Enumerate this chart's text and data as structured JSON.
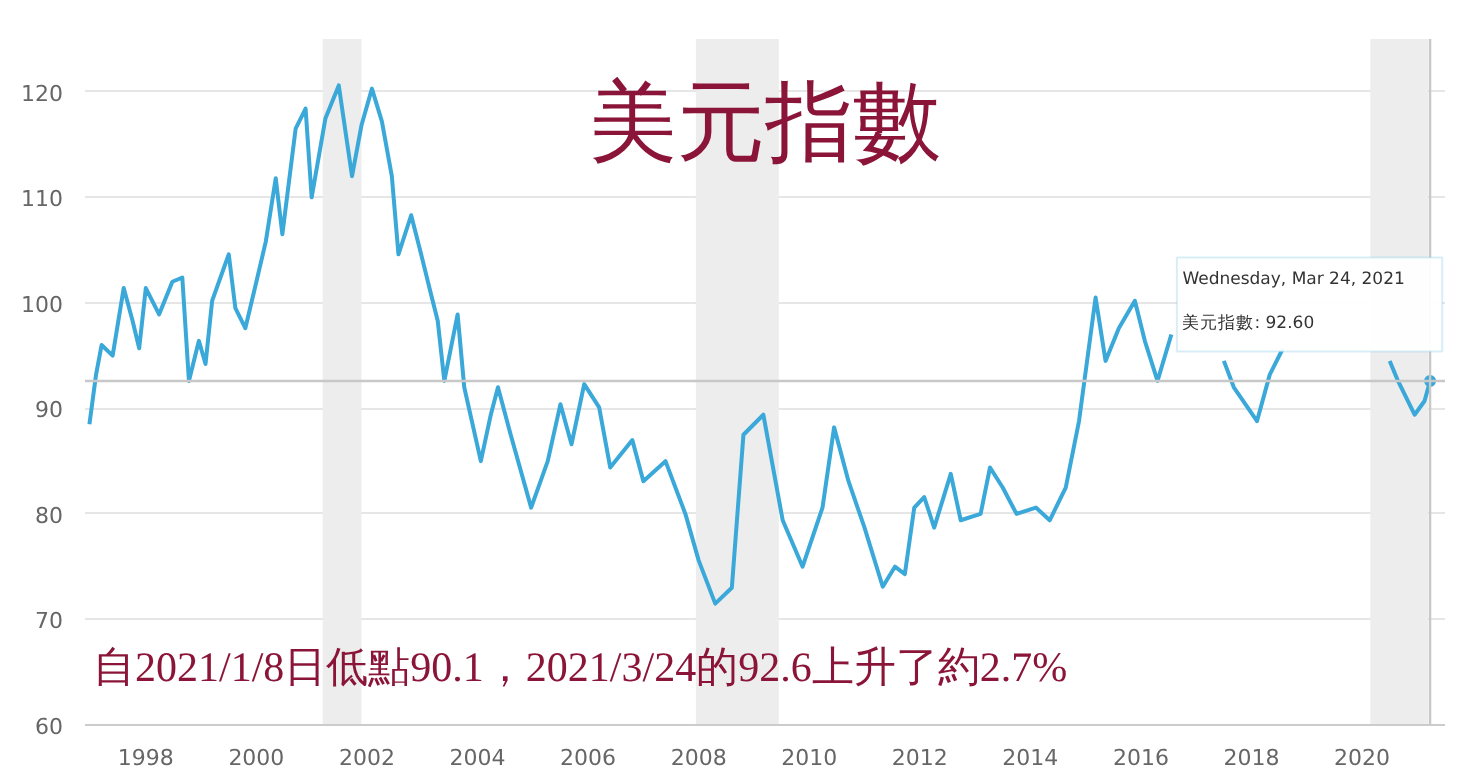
{
  "chart_data": {
    "type": "line",
    "title": "美元指數",
    "annotations": [
      "自2021/1/8日低點90.1，2021/3/24的92.6上升了約2.7%",
      "Wednesday, Mar 24, 2021",
      "美元指數: 92.60"
    ],
    "x": [
      1996.98,
      1997.1,
      1997.2,
      1997.4,
      1997.6,
      1997.76,
      1997.88,
      1998.0,
      1998.24,
      1998.48,
      1998.66,
      1998.78,
      1998.96,
      1999.08,
      1999.2,
      1999.5,
      1999.62,
      1999.8,
      2000.0,
      2000.17,
      2000.35,
      2000.47,
      2000.71,
      2000.89,
      2001.0,
      2001.25,
      2001.49,
      2001.73,
      2001.9,
      2002.09,
      2002.27,
      2002.45,
      2002.57,
      2002.8,
      2002.98,
      2003.16,
      2003.28,
      2003.4,
      2003.64,
      2003.76,
      2004.06,
      2004.24,
      2004.37,
      2004.6,
      2004.97,
      2005.27,
      2005.5,
      2005.7,
      2005.93,
      2006.2,
      2006.4,
      2006.8,
      2007.0,
      2007.4,
      2007.76,
      2008.0,
      2008.3,
      2008.6,
      2008.81,
      2009.17,
      2009.52,
      2009.88,
      2010.24,
      2010.45,
      2010.71,
      2011.0,
      2011.33,
      2011.55,
      2011.73,
      2011.9,
      2012.08,
      2012.26,
      2012.56,
      2012.74,
      2013.1,
      2013.27,
      2013.5,
      2013.75,
      2014.1,
      2014.35,
      2014.64,
      2014.88,
      2015.18,
      2015.36,
      2015.6,
      2015.89,
      2016.07,
      2016.3,
      2016.55,
      2016.9,
      2017.1,
      2017.5,
      2017.68,
      2018.1,
      2018.33,
      2018.57,
      2018.93,
      2019.5,
      2020.5,
      2020.65,
      2020.95,
      2021.13,
      2021.23
    ],
    "series": [
      {
        "color": "#3aa8d8",
        "values": [
          88.5,
          93.2,
          96,
          95,
          101.4,
          98.3,
          95.7,
          101.4,
          98.9,
          102,
          102.4,
          92.6,
          96.4,
          94.2,
          100.2,
          104.6,
          99.5,
          97.6,
          102,
          105.8,
          111.8,
          106.5,
          116.5,
          118.4,
          110,
          117.5,
          120.6,
          112,
          116.8,
          120.3,
          117.2,
          112,
          104.6,
          108.3,
          104.6,
          100.8,
          98.3,
          92.6,
          98.9,
          92,
          85,
          89.4,
          92,
          87.5,
          80.6,
          85,
          90.4,
          86.6,
          92.3,
          90.1,
          84.4,
          87,
          83.1,
          85,
          80,
          75.6,
          71.5,
          73,
          87.5,
          89.4,
          79.4,
          75,
          80.6,
          88.2,
          83.1,
          78.7,
          73.1,
          75,
          74.3,
          80.6,
          81.6,
          78.7,
          83.8,
          79.4,
          80,
          84.4,
          82.5,
          80,
          80.6,
          79.4,
          82.5,
          88.8,
          100.5,
          94.5,
          97.6,
          100.2,
          96.4,
          92.6,
          97,
          null,
          null,
          94.5,
          92,
          88.8,
          93.2,
          95.7,
          null,
          null,
          94.5,
          92.6,
          89.4,
          90.7,
          92.6
        ]
      }
    ],
    "xlim": [
      1996.9,
      2021.5
    ],
    "ylim": [
      60,
      125
    ],
    "xticks": [
      1998,
      2000,
      2002,
      2004,
      2006,
      2008,
      2010,
      2012,
      2014,
      2016,
      2018,
      2020
    ],
    "yticks": [
      60,
      70,
      80,
      90,
      100,
      110,
      120
    ],
    "grid": "y",
    "marker": "none",
    "line_style": "solid",
    "bands": [
      {
        "axis": "x",
        "from": 2001.2,
        "to": 2001.9,
        "color": "#ededed"
      },
      {
        "axis": "x",
        "from": 2007.95,
        "to": 2009.45,
        "color": "#ededed"
      },
      {
        "axis": "x",
        "from": 2020.15,
        "to": 2021.2,
        "color": "#ededed"
      }
    ],
    "ref_lines": [
      {
        "axis": "y",
        "value": 92.6,
        "color": "#c8c8c8"
      },
      {
        "axis": "x",
        "value": 2021.23,
        "color": "#c8c8c8"
      }
    ]
  }
}
